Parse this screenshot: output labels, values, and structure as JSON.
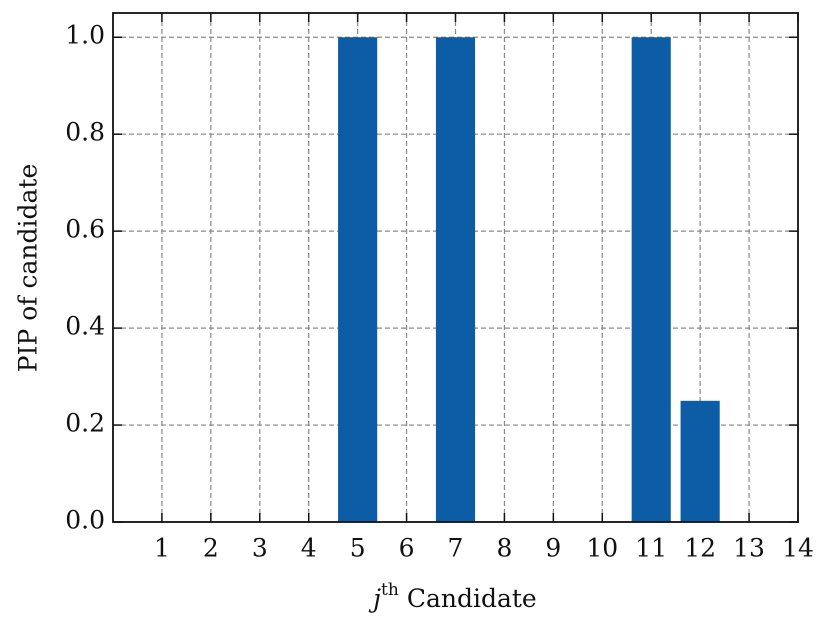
{
  "chart_data": {
    "type": "bar",
    "x": [
      5,
      7,
      11,
      12
    ],
    "values": [
      1,
      1,
      1,
      0.25
    ],
    "color": "#0c5da5",
    "xlim": [
      0,
      14
    ],
    "xticks": [
      1,
      2,
      3,
      4,
      5,
      6,
      7,
      8,
      9,
      10,
      11,
      12,
      13,
      14
    ],
    "ylim": [
      0,
      1.05
    ],
    "yticks": [
      {
        "value": 0,
        "label": "0.0"
      },
      0.2,
      0.4,
      0.6,
      0.8,
      {
        "value": 1,
        "label": "1.0"
      }
    ],
    "grid": true,
    "xlabel": [
      "j",
      "th",
      "Candidate"
    ],
    "ylabel": "PIP of candidate"
  }
}
